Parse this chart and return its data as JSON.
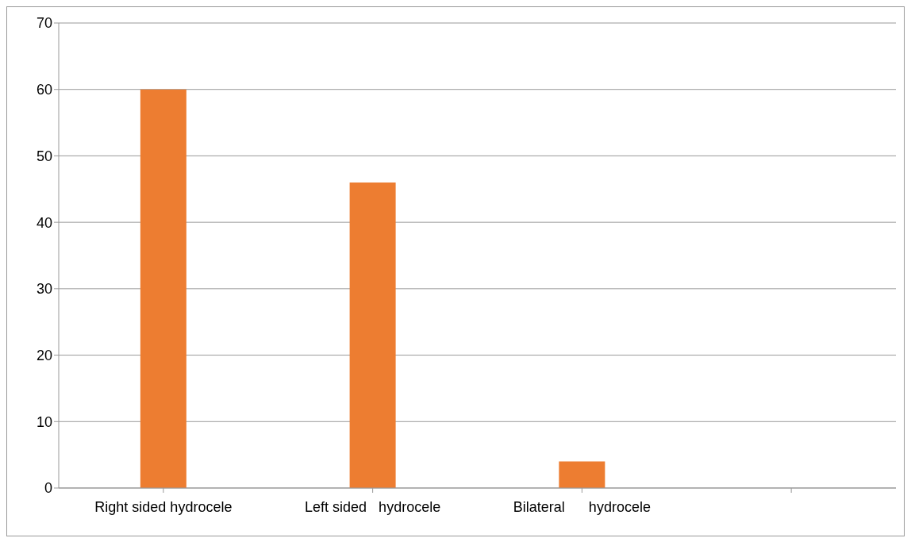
{
  "chart_data": {
    "type": "bar",
    "categories": [
      "Right sided hydrocele",
      "Left sided   hydrocele",
      "Bilateral      hydrocele",
      null
    ],
    "values": [
      60,
      46,
      4,
      null
    ],
    "color": "#ed7d31",
    "ylim": [
      0,
      70
    ],
    "yticks": [
      0,
      10,
      20,
      30,
      40,
      50,
      60,
      70
    ],
    "grid": "y"
  }
}
